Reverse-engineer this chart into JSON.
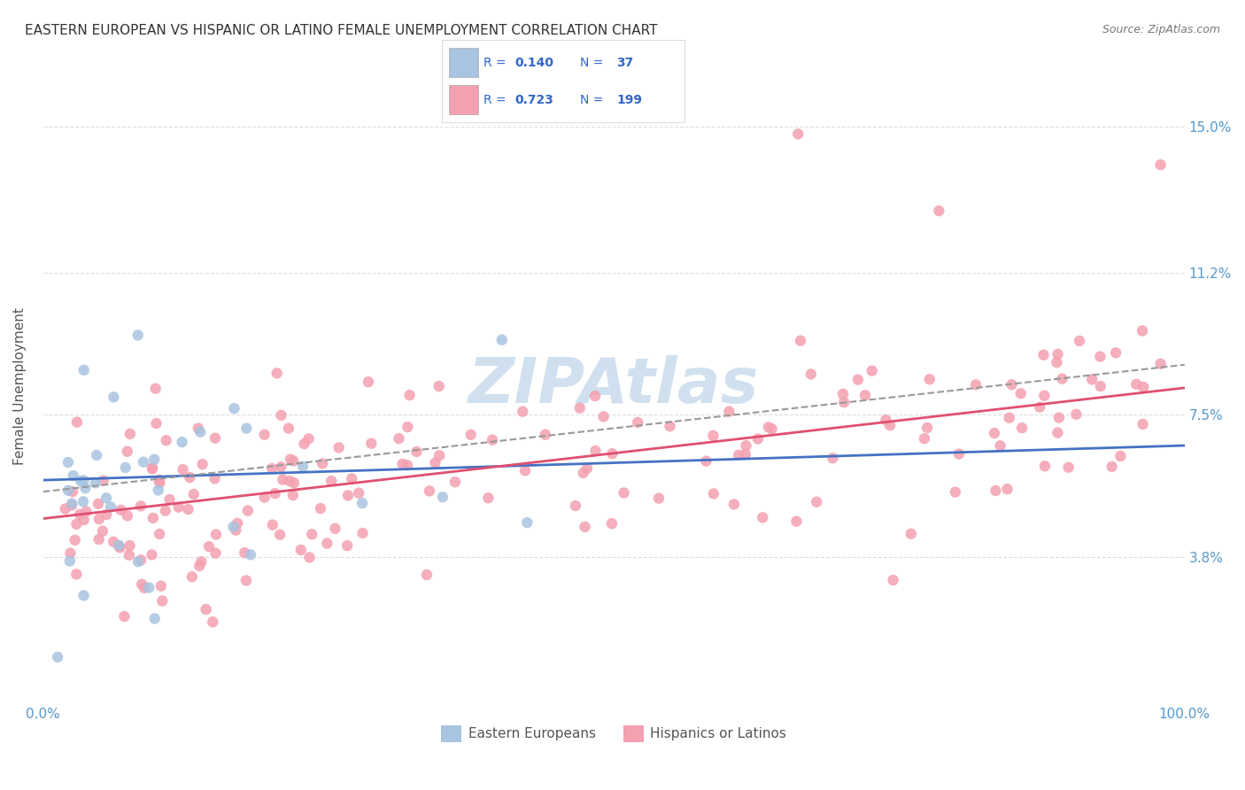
{
  "title": "EASTERN EUROPEAN VS HISPANIC OR LATINO FEMALE UNEMPLOYMENT CORRELATION CHART",
  "source": "Source: ZipAtlas.com",
  "ylabel": "Female Unemployment",
  "yticks": [
    "3.8%",
    "7.5%",
    "11.2%",
    "15.0%"
  ],
  "ytick_vals": [
    3.8,
    7.5,
    11.2,
    15.0
  ],
  "ymin": 0.0,
  "ymax": 16.5,
  "xmin": 0.0,
  "xmax": 100.0,
  "scatter_blue_color": "#a8c4e0",
  "scatter_pink_color": "#f4a0b0",
  "line_blue_color": "#4472c4",
  "line_pink_color": "#e05070",
  "line_dashed_color": "#999999",
  "watermark_text": "ZIPAtlas",
  "watermark_color": "#ccddee",
  "background_color": "#ffffff",
  "grid_color": "#dddddd",
  "tick_label_color": "#5599cc",
  "title_color": "#333333",
  "blue_N": 37,
  "pink_N": 199,
  "blue_y_at_0": 5.8,
  "blue_y_at_100": 6.7,
  "pink_y_at_0": 4.8,
  "pink_y_at_100": 8.2,
  "dashed_y_at_0": 5.5,
  "dashed_y_at_100": 8.8,
  "legend_R_blue": "0.140",
  "legend_R_pink": "0.723",
  "legend_N_blue": "37",
  "legend_N_pink": "199",
  "legend_text_color": "#3366cc",
  "legend_bottom_label_blue": "Eastern Europeans",
  "legend_bottom_label_pink": "Hispanics or Latinos"
}
